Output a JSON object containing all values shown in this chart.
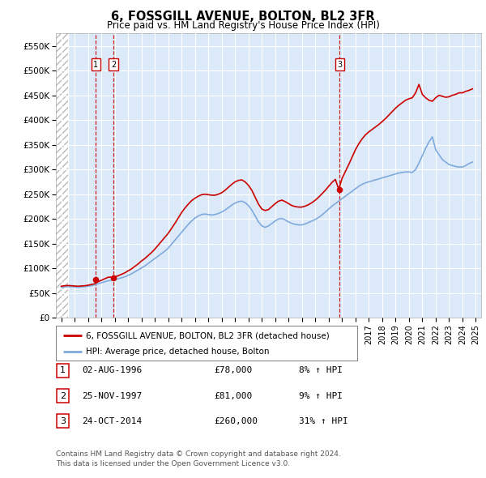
{
  "title": "6, FOSSGILL AVENUE, BOLTON, BL2 3FR",
  "subtitle": "Price paid vs. HM Land Registry's House Price Index (HPI)",
  "ylabel_ticks": [
    "£0",
    "£50K",
    "£100K",
    "£150K",
    "£200K",
    "£250K",
    "£300K",
    "£350K",
    "£400K",
    "£450K",
    "£500K",
    "£550K"
  ],
  "ytick_vals": [
    0,
    50000,
    100000,
    150000,
    200000,
    250000,
    300000,
    350000,
    400000,
    450000,
    500000,
    550000
  ],
  "ylim": [
    0,
    575000
  ],
  "xlim_start": 1993.6,
  "xlim_end": 2025.4,
  "hatch_end": 1994.5,
  "background_color": "#dce9f8",
  "hatch_color": "#c8c8c8",
  "grid_color": "#ffffff",
  "sales": [
    {
      "date_x": 1996.585,
      "price": 78000,
      "label": "1"
    },
    {
      "date_x": 1997.9,
      "price": 81000,
      "label": "2"
    },
    {
      "date_x": 2014.81,
      "price": 260000,
      "label": "3"
    }
  ],
  "sale_marker_color": "#cc0000",
  "vline_color": "#cc0000",
  "hpi_line_color": "#7faadd",
  "price_line_color": "#cc0000",
  "legend_items": [
    "6, FOSSGILL AVENUE, BOLTON, BL2 3FR (detached house)",
    "HPI: Average price, detached house, Bolton"
  ],
  "table_rows": [
    {
      "label": "1",
      "date": "02-AUG-1996",
      "price": "£78,000",
      "hpi": "8% ↑ HPI"
    },
    {
      "label": "2",
      "date": "25-NOV-1997",
      "price": "£81,000",
      "hpi": "9% ↑ HPI"
    },
    {
      "label": "3",
      "date": "24-OCT-2014",
      "price": "£260,000",
      "hpi": "31% ↑ HPI"
    }
  ],
  "footnote": "Contains HM Land Registry data © Crown copyright and database right 2024.\nThis data is licensed under the Open Government Licence v3.0.",
  "hpi_data_x": [
    1994.0,
    1994.25,
    1994.5,
    1994.75,
    1995.0,
    1995.25,
    1995.5,
    1995.75,
    1996.0,
    1996.25,
    1996.5,
    1996.75,
    1997.0,
    1997.25,
    1997.5,
    1997.75,
    1998.0,
    1998.25,
    1998.5,
    1998.75,
    1999.0,
    1999.25,
    1999.5,
    1999.75,
    2000.0,
    2000.25,
    2000.5,
    2000.75,
    2001.0,
    2001.25,
    2001.5,
    2001.75,
    2002.0,
    2002.25,
    2002.5,
    2002.75,
    2003.0,
    2003.25,
    2003.5,
    2003.75,
    2004.0,
    2004.25,
    2004.5,
    2004.75,
    2005.0,
    2005.25,
    2005.5,
    2005.75,
    2006.0,
    2006.25,
    2006.5,
    2006.75,
    2007.0,
    2007.25,
    2007.5,
    2007.75,
    2008.0,
    2008.25,
    2008.5,
    2008.75,
    2009.0,
    2009.25,
    2009.5,
    2009.75,
    2010.0,
    2010.25,
    2010.5,
    2010.75,
    2011.0,
    2011.25,
    2011.5,
    2011.75,
    2012.0,
    2012.25,
    2012.5,
    2012.75,
    2013.0,
    2013.25,
    2013.5,
    2013.75,
    2014.0,
    2014.25,
    2014.5,
    2014.75,
    2015.0,
    2015.25,
    2015.5,
    2015.75,
    2016.0,
    2016.25,
    2016.5,
    2016.75,
    2017.0,
    2017.25,
    2017.5,
    2017.75,
    2018.0,
    2018.25,
    2018.5,
    2018.75,
    2019.0,
    2019.25,
    2019.5,
    2019.75,
    2020.0,
    2020.25,
    2020.5,
    2020.75,
    2021.0,
    2021.25,
    2021.5,
    2021.75,
    2022.0,
    2022.25,
    2022.5,
    2022.75,
    2023.0,
    2023.25,
    2023.5,
    2023.75,
    2024.0,
    2024.25,
    2024.5,
    2024.75
  ],
  "hpi_data_y": [
    62000,
    62500,
    63000,
    63000,
    62500,
    62000,
    62500,
    63000,
    64000,
    65000,
    67000,
    69000,
    71000,
    73000,
    75000,
    76000,
    77000,
    79000,
    81000,
    83000,
    86000,
    89000,
    93000,
    97000,
    101000,
    105000,
    110000,
    115000,
    120000,
    125000,
    130000,
    135000,
    141000,
    149000,
    157000,
    165000,
    173000,
    181000,
    189000,
    196000,
    202000,
    206000,
    209000,
    210000,
    209000,
    208000,
    209000,
    211000,
    214000,
    218000,
    223000,
    228000,
    232000,
    235000,
    236000,
    233000,
    227000,
    218000,
    206000,
    194000,
    186000,
    183000,
    186000,
    191000,
    196000,
    200000,
    201000,
    198000,
    194000,
    191000,
    189000,
    188000,
    188000,
    190000,
    193000,
    196000,
    199000,
    203000,
    208000,
    214000,
    220000,
    226000,
    231000,
    236000,
    241000,
    246000,
    251000,
    256000,
    261000,
    266000,
    270000,
    273000,
    275000,
    277000,
    279000,
    281000,
    283000,
    285000,
    287000,
    289000,
    291000,
    293000,
    294000,
    295000,
    295000,
    294000,
    300000,
    313000,
    328000,
    343000,
    356000,
    366000,
    340000,
    330000,
    320000,
    315000,
    310000,
    308000,
    306000,
    305000,
    305000,
    308000,
    312000,
    315000
  ],
  "price_data_x": [
    1994.0,
    1994.25,
    1994.5,
    1994.75,
    1995.0,
    1995.25,
    1995.5,
    1995.75,
    1996.0,
    1996.25,
    1996.5,
    1996.75,
    1997.0,
    1997.25,
    1997.5,
    1997.75,
    1998.0,
    1998.25,
    1998.5,
    1998.75,
    1999.0,
    1999.25,
    1999.5,
    1999.75,
    2000.0,
    2000.25,
    2000.5,
    2000.75,
    2001.0,
    2001.25,
    2001.5,
    2001.75,
    2002.0,
    2002.25,
    2002.5,
    2002.75,
    2003.0,
    2003.25,
    2003.5,
    2003.75,
    2004.0,
    2004.25,
    2004.5,
    2004.75,
    2005.0,
    2005.25,
    2005.5,
    2005.75,
    2006.0,
    2006.25,
    2006.5,
    2006.75,
    2007.0,
    2007.25,
    2007.5,
    2007.75,
    2008.0,
    2008.25,
    2008.5,
    2008.75,
    2009.0,
    2009.25,
    2009.5,
    2009.75,
    2010.0,
    2010.25,
    2010.5,
    2010.75,
    2011.0,
    2011.25,
    2011.5,
    2011.75,
    2012.0,
    2012.25,
    2012.5,
    2012.75,
    2013.0,
    2013.25,
    2013.5,
    2013.75,
    2014.0,
    2014.25,
    2014.5,
    2014.75,
    2015.0,
    2015.25,
    2015.5,
    2015.75,
    2016.0,
    2016.25,
    2016.5,
    2016.75,
    2017.0,
    2017.25,
    2017.5,
    2017.75,
    2018.0,
    2018.25,
    2018.5,
    2018.75,
    2019.0,
    2019.25,
    2019.5,
    2019.75,
    2020.0,
    2020.25,
    2020.5,
    2020.75,
    2021.0,
    2021.25,
    2021.5,
    2021.75,
    2022.0,
    2022.25,
    2022.5,
    2022.75,
    2023.0,
    2023.25,
    2023.5,
    2023.75,
    2024.0,
    2024.25,
    2024.5,
    2024.75
  ],
  "price_data_y": [
    64000,
    65000,
    65500,
    65000,
    64500,
    64000,
    64500,
    65000,
    66000,
    67500,
    69000,
    73000,
    76000,
    79000,
    82000,
    82500,
    83000,
    85000,
    88000,
    91000,
    95000,
    99000,
    104000,
    109000,
    115000,
    120000,
    126000,
    132000,
    139000,
    147000,
    155000,
    163000,
    171000,
    181000,
    191000,
    202000,
    213000,
    222000,
    230000,
    237000,
    242000,
    246000,
    249000,
    250000,
    249000,
    248000,
    248000,
    250000,
    253000,
    258000,
    264000,
    270000,
    275000,
    278000,
    279000,
    275000,
    268000,
    258000,
    244000,
    230000,
    220000,
    217000,
    219000,
    225000,
    231000,
    236000,
    238000,
    235000,
    231000,
    227000,
    225000,
    224000,
    224000,
    226000,
    229000,
    233000,
    238000,
    244000,
    251000,
    258000,
    266000,
    274000,
    280000,
    260000,
    282000,
    296000,
    310000,
    325000,
    340000,
    352000,
    362000,
    370000,
    376000,
    381000,
    386000,
    391000,
    397000,
    403000,
    410000,
    417000,
    424000,
    430000,
    435000,
    440000,
    443000,
    445000,
    455000,
    472000,
    452000,
    445000,
    440000,
    438000,
    445000,
    450000,
    448000,
    446000,
    447000,
    450000,
    452000,
    455000,
    455000,
    458000,
    460000,
    463000
  ]
}
